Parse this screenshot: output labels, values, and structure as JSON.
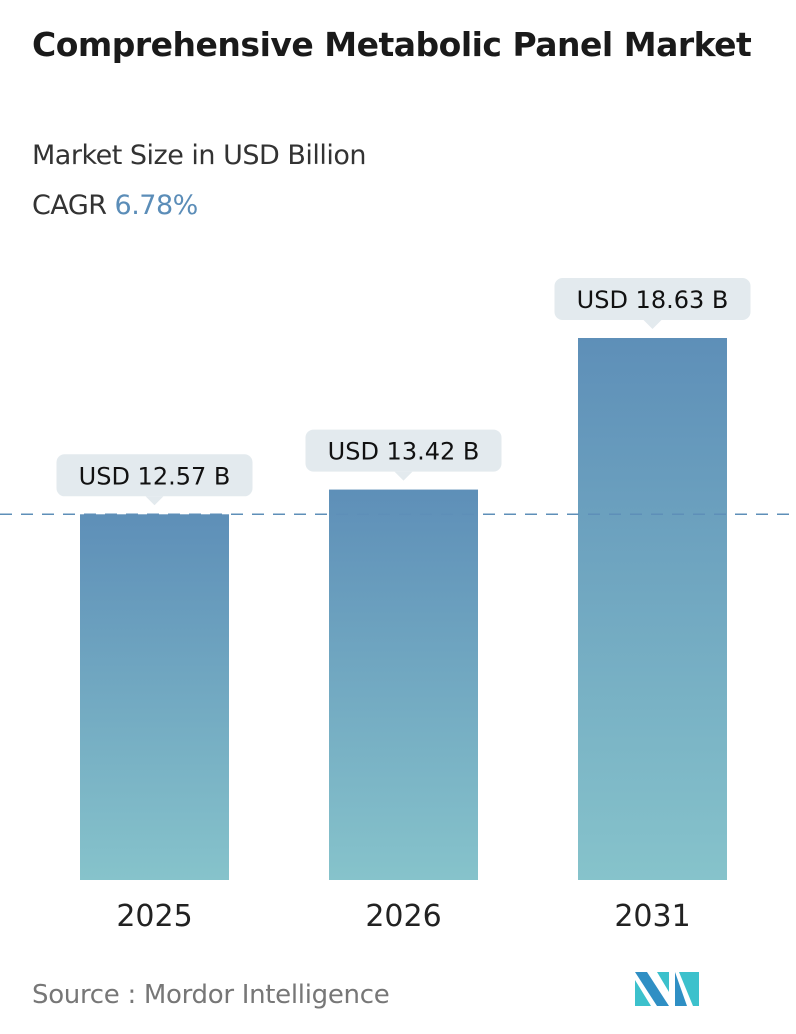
{
  "header": {
    "title": "Comprehensive Metabolic Panel Market",
    "subtitle": "Market Size in USD Billion",
    "cagr_label": "CAGR",
    "cagr_value": "6.78%"
  },
  "chart_data": {
    "type": "bar",
    "categories": [
      "2025",
      "2026",
      "2031"
    ],
    "values": [
      12.57,
      13.42,
      18.63
    ],
    "data_labels": [
      "USD 12.57 B",
      "USD 13.42 B",
      "USD 18.63 B"
    ],
    "reference_line": 12.57,
    "ylim": [
      0,
      18.63
    ],
    "grid": false,
    "colors": {
      "bar_top": "#5e8fb8",
      "bar_bottom": "#86c3cb",
      "label_bg": "#e3eaee",
      "dash": "#5e8fb8",
      "accent": "#5b8db8"
    }
  },
  "footer": {
    "source": "Source :  Mordor Intelligence",
    "logo": "MI"
  }
}
